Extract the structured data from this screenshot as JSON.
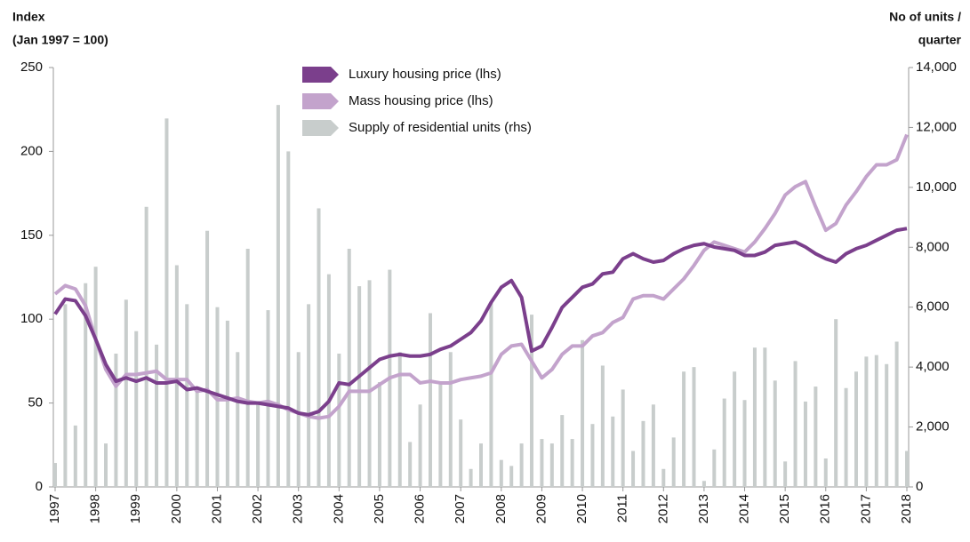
{
  "chart_data": {
    "type": "bar_line",
    "ylabel": [
      "Index",
      "(Jan 1997 = 100)"
    ],
    "y2label": [
      "No of units /",
      "quarter"
    ],
    "categories": [
      "1997",
      null,
      null,
      null,
      "1998",
      null,
      null,
      null,
      "1999",
      null,
      null,
      null,
      "2000",
      null,
      null,
      null,
      "2001",
      null,
      null,
      null,
      "2002",
      null,
      null,
      null,
      "2003",
      null,
      null,
      null,
      "2004",
      null,
      null,
      null,
      "2005",
      null,
      null,
      null,
      "2006",
      null,
      null,
      null,
      "2007",
      null,
      null,
      null,
      "2008",
      null,
      null,
      null,
      "2009",
      null,
      null,
      null,
      "2010",
      null,
      null,
      null,
      "2011",
      null,
      null,
      null,
      "2012",
      null,
      null,
      null,
      "2013",
      null,
      null,
      null,
      "2014",
      null,
      null,
      null,
      "2015",
      null,
      null,
      null,
      "2016",
      null,
      null,
      null,
      "2017",
      null,
      null,
      null,
      "2018"
    ],
    "ylim": [
      0,
      250
    ],
    "yticks": [
      0,
      50,
      100,
      150,
      200,
      250
    ],
    "y2lim": [
      0,
      14000
    ],
    "y2ticks": [
      0,
      {
        "value": 2000,
        "label": "2,000"
      },
      {
        "value": 4000,
        "label": "4,000"
      },
      {
        "value": 6000,
        "label": "6,000"
      },
      {
        "value": 8000,
        "label": "8,000"
      },
      {
        "value": 10000,
        "label": "10,000"
      },
      {
        "value": 12000,
        "label": "12,000"
      },
      {
        "value": 14000,
        "label": "14,000"
      }
    ],
    "legend": "top",
    "series": [
      {
        "name": "Luxury housing price (lhs)",
        "color": "#7b3f8c",
        "kind": "line",
        "values": [
          103,
          112,
          111,
          102,
          88,
          73,
          63,
          65,
          63,
          65,
          62,
          62,
          63,
          58,
          59,
          57,
          55,
          53,
          51,
          50,
          50,
          49,
          48,
          47,
          44,
          43,
          45,
          51,
          62,
          61,
          66,
          71,
          76,
          78,
          79,
          78,
          78,
          79,
          82,
          84,
          88,
          92,
          99,
          110,
          119,
          123,
          113,
          81,
          84,
          95,
          107,
          113,
          119,
          121,
          127,
          128,
          136,
          139,
          136,
          134,
          135,
          139,
          142,
          144,
          145,
          143,
          142,
          141,
          138,
          138,
          140,
          144,
          145,
          146,
          143,
          139,
          136,
          134,
          139,
          142,
          144,
          147,
          150,
          153,
          154
        ]
      },
      {
        "name": "Mass housing price (lhs)",
        "color": "#c3a3cc",
        "kind": "line",
        "values": [
          115,
          120,
          118,
          108,
          88,
          70,
          60,
          67,
          67,
          68,
          69,
          64,
          64,
          64,
          57,
          58,
          52,
          52,
          53,
          51,
          50,
          51,
          49,
          46,
          44,
          42,
          41,
          42,
          48,
          57,
          57,
          57,
          61,
          65,
          67,
          67,
          62,
          63,
          62,
          62,
          64,
          65,
          66,
          68,
          79,
          84,
          85,
          75,
          65,
          70,
          79,
          84,
          84,
          90,
          92,
          98,
          101,
          112,
          114,
          114,
          112,
          118,
          124,
          132,
          141,
          146,
          144,
          142,
          140,
          146,
          154,
          163,
          174,
          179,
          182,
          167,
          153,
          157,
          168,
          176,
          185,
          192,
          192,
          195,
          210
        ]
      },
      {
        "name": "Supply of residential units (rhs)",
        "color": "#c8cdcc",
        "kind": "bar",
        "axis": "y2",
        "values": [
          800,
          6100,
          2050,
          6800,
          7350,
          1450,
          4450,
          6250,
          5200,
          9350,
          4750,
          12300,
          7400,
          6100,
          3200,
          8550,
          6000,
          5550,
          4500,
          7950,
          2800,
          5900,
          12750,
          11200,
          4500,
          6100,
          9300,
          7100,
          4450,
          7950,
          6700,
          6900,
          3500,
          7250,
          4500,
          1500,
          2750,
          5800,
          3500,
          4500,
          2250,
          600,
          1450,
          6150,
          900,
          700,
          1450,
          5750,
          1600,
          1450,
          2400,
          1600,
          4900,
          2100,
          4050,
          2350,
          3250,
          1200,
          2200,
          2750,
          600,
          1650,
          3850,
          4000,
          200,
          1250,
          2950,
          3850,
          2900,
          4650,
          4650,
          3550,
          850,
          4200,
          2850,
          3350,
          950,
          5600,
          3300,
          3850,
          4350,
          4400,
          4100,
          4850,
          1200
        ]
      }
    ]
  }
}
